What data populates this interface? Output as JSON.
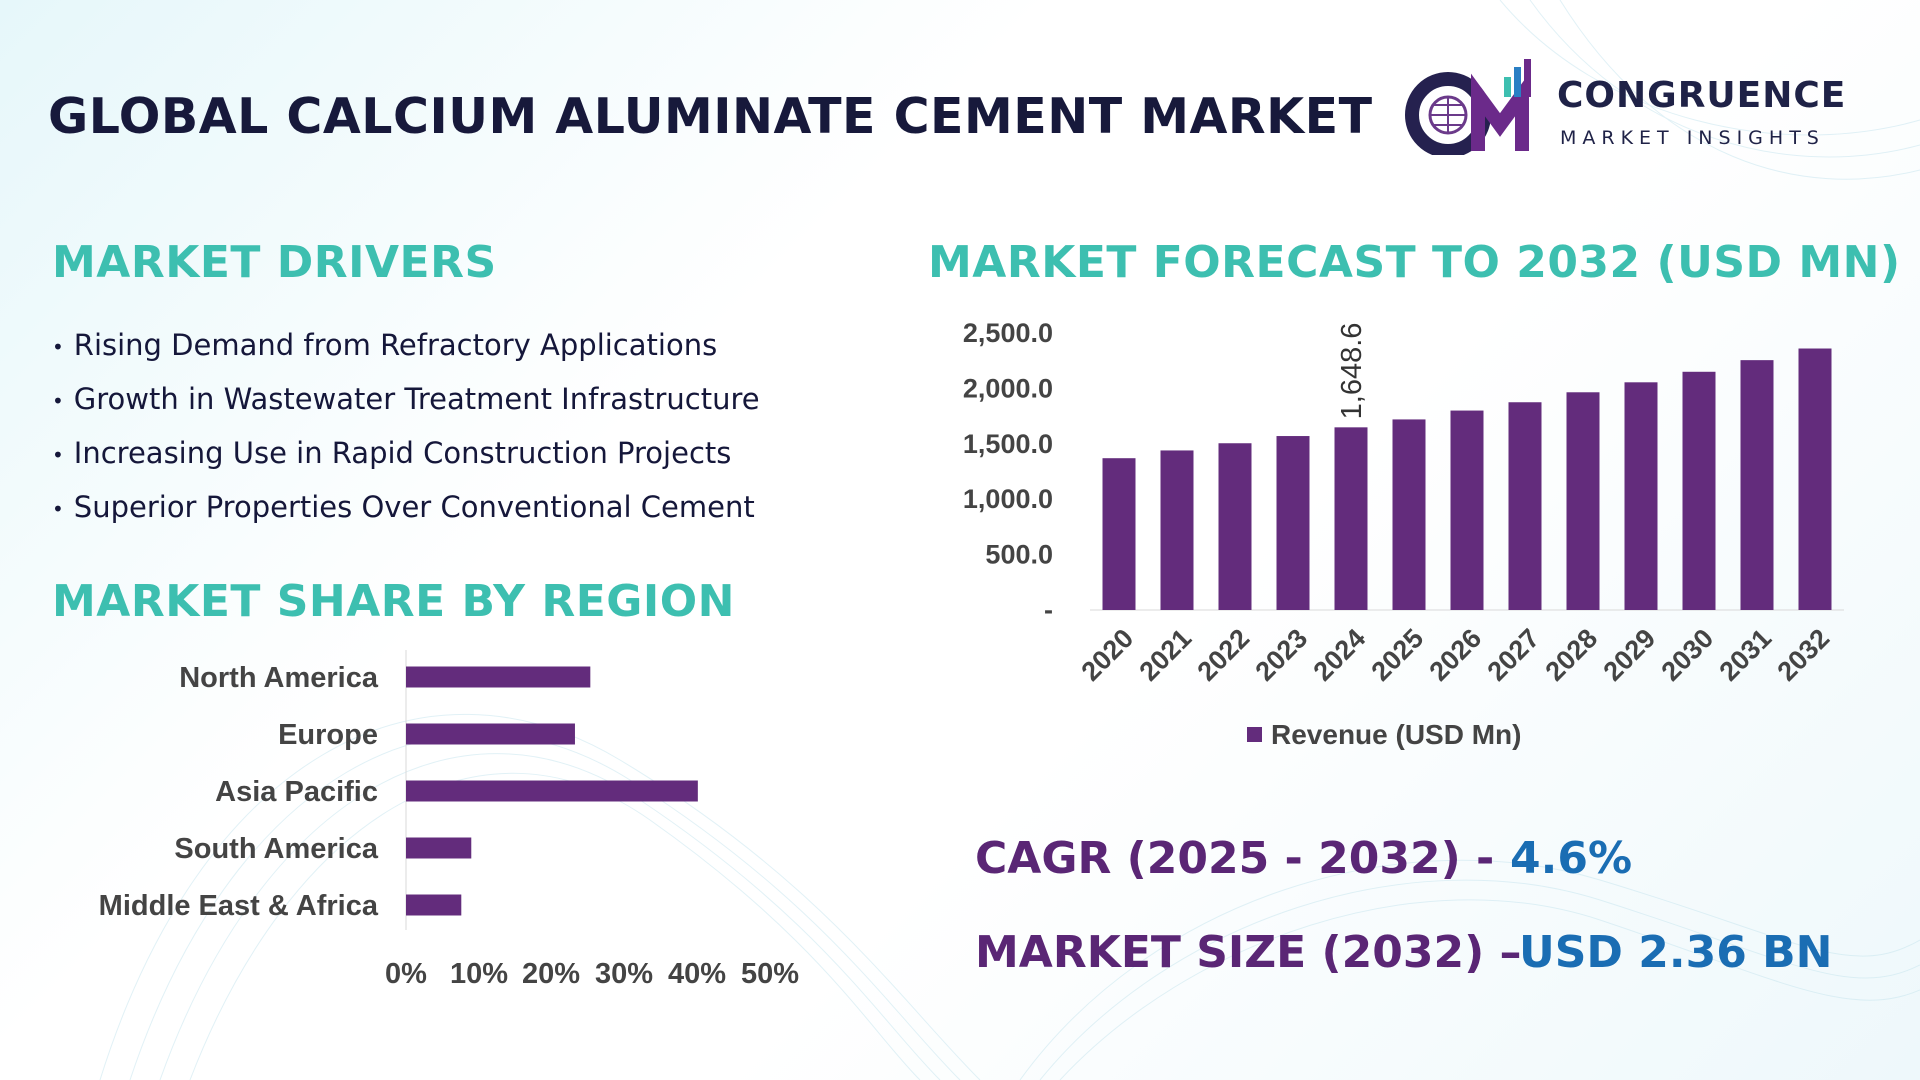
{
  "header": {
    "title": "GLOBAL CALCIUM ALUMINATE CEMENT MARKET",
    "logo_name": "CONGRUENCE",
    "logo_tagline": "MARKET INSIGHTS"
  },
  "colors": {
    "accent": "#3dbfb0",
    "bar": "#632c7c",
    "stat_label": "#5a2675",
    "stat_value": "#1a6db3",
    "title": "#17193b"
  },
  "drivers": {
    "title": "MARKET DRIVERS",
    "items": [
      "Rising Demand from Refractory Applications",
      "Growth in Wastewater Treatment Infrastructure",
      "Increasing Use in Rapid Construction Projects",
      "Superior Properties Over Conventional Cement"
    ]
  },
  "region": {
    "title": "MARKET SHARE BY REGION"
  },
  "forecast": {
    "title": "MARKET FORECAST TO 2032 (USD MN)"
  },
  "stats": {
    "cagr_label": "CAGR (2025 - 2032) -",
    "cagr_value": "4.6%",
    "size_label": "MARKET SIZE (2032) –",
    "size_value": "USD 2.36 BN"
  },
  "chart_data": [
    {
      "type": "bar",
      "orientation": "vertical",
      "categories": [
        "2020",
        "2021",
        "2022",
        "2023",
        "2024",
        "2025",
        "2026",
        "2027",
        "2028",
        "2029",
        "2030",
        "2031",
        "2032"
      ],
      "series": [
        {
          "name": "Revenue (USD Mn)",
          "values": [
            1370,
            1440,
            1505,
            1570,
            1648.6,
            1720,
            1800,
            1875,
            1965,
            2055,
            2150,
            2255,
            2360
          ]
        }
      ],
      "ylim": [
        0,
        2500
      ],
      "yticks": [
        "-",
        "500.0",
        "1,000.0",
        "1,500.0",
        "2,000.0",
        "2,500.0"
      ],
      "annotations": [
        {
          "category": "2024",
          "text": "1,648.6"
        }
      ],
      "legend": "bottom",
      "grid": false
    },
    {
      "type": "bar",
      "orientation": "horizontal",
      "categories": [
        "North America",
        "Europe",
        "Asia Pacific",
        "South America",
        "Middle East & Africa"
      ],
      "values": [
        24,
        22,
        38,
        8.5,
        7.2
      ],
      "xlim": [
        0,
        50
      ],
      "xticks": [
        "0%",
        "10%",
        "20%",
        "30%",
        "40%",
        "50%"
      ],
      "grid": false
    }
  ]
}
